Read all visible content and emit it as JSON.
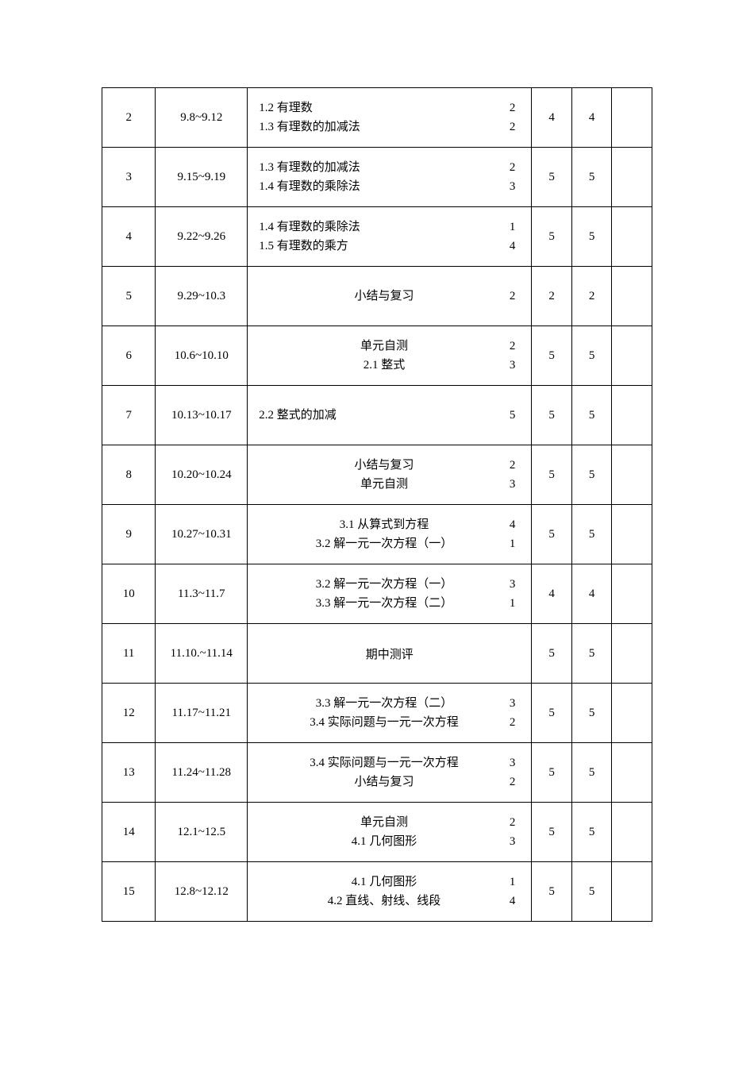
{
  "rows": [
    {
      "week": "2",
      "dates": "9.8~9.12",
      "topics": [
        "1.2 有理数",
        "1.3 有理数的加减法"
      ],
      "hours": [
        "2",
        "2"
      ],
      "c1": "4",
      "c2": "4",
      "c3": "",
      "centered": false
    },
    {
      "week": "3",
      "dates": "9.15~9.19",
      "topics": [
        "1.3 有理数的加减法",
        "1.4 有理数的乘除法"
      ],
      "hours": [
        "2",
        "3"
      ],
      "c1": "5",
      "c2": "5",
      "c3": "",
      "centered": false
    },
    {
      "week": "4",
      "dates": "9.22~9.26",
      "topics": [
        "1.4 有理数的乘除法",
        "1.5 有理数的乘方"
      ],
      "hours": [
        "1",
        "4"
      ],
      "c1": "5",
      "c2": "5",
      "c3": "",
      "centered": false
    },
    {
      "week": "5",
      "dates": "9.29~10.3",
      "topics": [
        "小结与复习"
      ],
      "hours": [
        "2"
      ],
      "c1": "2",
      "c2": "2",
      "c3": "",
      "centered": true
    },
    {
      "week": "6",
      "dates": "10.6~10.10",
      "topics": [
        "单元自测",
        "2.1 整式"
      ],
      "hours": [
        "2",
        "3"
      ],
      "c1": "5",
      "c2": "5",
      "c3": "",
      "centered": true
    },
    {
      "week": "7",
      "dates": "10.13~10.17",
      "topics": [
        "2.2 整式的加减"
      ],
      "hours": [
        "5"
      ],
      "c1": "5",
      "c2": "5",
      "c3": "",
      "centered": false
    },
    {
      "week": "8",
      "dates": "10.20~10.24",
      "topics": [
        "小结与复习",
        "单元自测"
      ],
      "hours": [
        "2",
        "3"
      ],
      "c1": "5",
      "c2": "5",
      "c3": "",
      "centered": true
    },
    {
      "week": "9",
      "dates": "10.27~10.31",
      "topics": [
        "3.1 从算式到方程",
        "3.2 解一元一次方程（一）"
      ],
      "hours": [
        "4",
        "1"
      ],
      "c1": "5",
      "c2": "5",
      "c3": "",
      "centered": true
    },
    {
      "week": "10",
      "dates": "11.3~11.7",
      "topics": [
        "3.2 解一元一次方程（一）",
        "3.3 解一元一次方程（二）"
      ],
      "hours": [
        "3",
        "1"
      ],
      "c1": "4",
      "c2": "4",
      "c3": "",
      "centered": true
    },
    {
      "week": "11",
      "dates": "11.10.~11.14",
      "topics": [
        "期中测评"
      ],
      "hours": [
        ""
      ],
      "c1": "5",
      "c2": "5",
      "c3": "",
      "centered": true,
      "single_center": true
    },
    {
      "week": "12",
      "dates": "11.17~11.21",
      "topics": [
        "3.3 解一元一次方程（二）",
        "3.4 实际问题与一元一次方程"
      ],
      "hours": [
        "3",
        "2"
      ],
      "c1": "5",
      "c2": "5",
      "c3": "",
      "centered": true
    },
    {
      "week": "13",
      "dates": "11.24~11.28",
      "topics": [
        "3.4 实际问题与一元一次方程",
        "小结与复习"
      ],
      "hours": [
        "3",
        "2"
      ],
      "c1": "5",
      "c2": "5",
      "c3": "",
      "centered": true
    },
    {
      "week": "14",
      "dates": "12.1~12.5",
      "topics": [
        "单元自测",
        "4.1 几何图形"
      ],
      "hours": [
        "2",
        "3"
      ],
      "c1": "5",
      "c2": "5",
      "c3": "",
      "centered": true
    },
    {
      "week": "15",
      "dates": "12.8~12.12",
      "topics": [
        "4.1 几何图形",
        "4.2 直线、射线、线段"
      ],
      "hours": [
        "1",
        "4"
      ],
      "c1": "5",
      "c2": "5",
      "c3": "",
      "centered": true
    }
  ]
}
